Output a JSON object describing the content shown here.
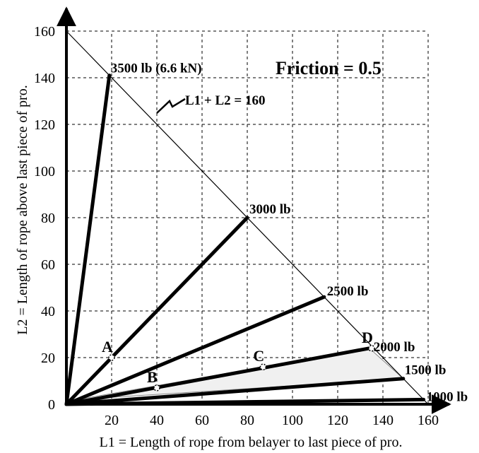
{
  "chart_data": {
    "type": "line",
    "title": "Friction = 0.5",
    "xlabel": "L1 = Length of rope from belayer to last piece of pro.",
    "ylabel": "L2 = Length of rope above last piece of pro.",
    "xlim": [
      0,
      160
    ],
    "ylim": [
      0,
      160
    ],
    "xticks": [
      20,
      40,
      60,
      80,
      100,
      120,
      140,
      160
    ],
    "yticks": [
      0,
      20,
      40,
      60,
      80,
      100,
      120,
      140,
      160
    ],
    "grid": true,
    "boundary": {
      "label": "L1 + L2 = 160",
      "points": [
        [
          0,
          160
        ],
        [
          160,
          0
        ]
      ]
    },
    "series": [
      {
        "name": "3500 lb (6.6 kN)",
        "points": [
          [
            0,
            0
          ],
          [
            19,
            141
          ]
        ]
      },
      {
        "name": "3000 lb",
        "points": [
          [
            0,
            0
          ],
          [
            80,
            80
          ]
        ]
      },
      {
        "name": "2500 lb",
        "points": [
          [
            0,
            0
          ],
          [
            114,
            46
          ]
        ]
      },
      {
        "name": "2000 lb",
        "points": [
          [
            0,
            0
          ],
          [
            134,
            24
          ]
        ]
      },
      {
        "name": "1500 lb",
        "points": [
          [
            0,
            0
          ],
          [
            149,
            11
          ]
        ]
      },
      {
        "name": "1000 lb",
        "points": [
          [
            0,
            0
          ],
          [
            158,
            2
          ]
        ]
      }
    ],
    "shaded_region": [
      [
        5,
        2
      ],
      [
        134,
        24
      ],
      [
        149,
        11
      ]
    ],
    "markers": [
      {
        "label": "A",
        "x": 20,
        "y": 20
      },
      {
        "label": "B",
        "x": 40,
        "y": 7
      },
      {
        "label": "C",
        "x": 87,
        "y": 16
      },
      {
        "label": "D",
        "x": 135,
        "y": 24
      }
    ]
  }
}
